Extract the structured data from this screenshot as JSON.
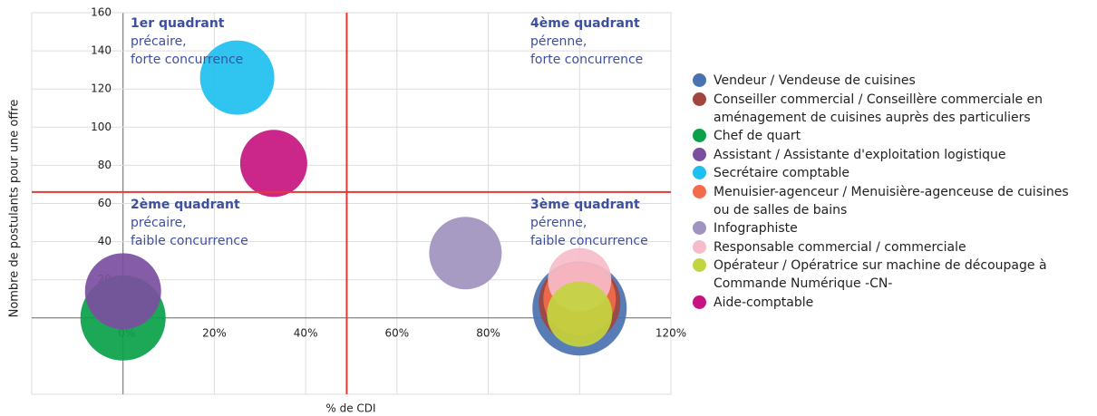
{
  "chart_data": {
    "type": "bubble",
    "xlabel": "% de CDI",
    "ylabel": "Nombre de postulants pour une offre",
    "xlim": [
      -20,
      120
    ],
    "xticks": [
      {
        "value": 0,
        "label": "0%"
      },
      {
        "value": 20,
        "label": "20%"
      },
      {
        "value": 40,
        "label": "40%"
      },
      {
        "value": 60,
        "label": "60%"
      },
      {
        "value": 80,
        "label": "80%"
      },
      {
        "value": 100,
        "label": "100%"
      },
      {
        "value": 120,
        "label": "120%"
      }
    ],
    "ylim": [
      -40,
      160
    ],
    "yticks": [
      0,
      20,
      40,
      60,
      80,
      100,
      120,
      140,
      160
    ],
    "grid": true,
    "quadrant_lines": {
      "x": 49,
      "y": 66
    },
    "annotations": [
      {
        "title": "1er quadrant",
        "lines": [
          "précaire,",
          "forte concurrence"
        ]
      },
      {
        "title": "4ème quadrant",
        "lines": [
          "pérenne,",
          "forte concurrence"
        ]
      },
      {
        "title": "2ème quadrant",
        "lines": [
          "précaire,",
          "faible concurrence"
        ]
      },
      {
        "title": "3ème quadrant",
        "lines": [
          "pérenne,",
          "faible concurrence"
        ]
      }
    ],
    "series": [
      {
        "name": "Vendeur / Vendeuse de cuisines",
        "color": "#4a72b0",
        "x": 100,
        "y": 5,
        "size": 52
      },
      {
        "name": "Conseiller commercial / Conseillère commerciale en aménagement de cuisines auprès des particuliers",
        "color": "#a0463f",
        "x": 100,
        "y": 8,
        "size": 45
      },
      {
        "name": "Chef de quart",
        "color": "#0aa14a",
        "x": 0,
        "y": 0,
        "size": 47
      },
      {
        "name": "Assistant / Assistante d'exploitation logistique",
        "color": "#7b4ea0",
        "x": 0,
        "y": 14,
        "size": 42
      },
      {
        "name": "Secrétaire comptable",
        "color": "#1ec0ef",
        "x": 25,
        "y": 126,
        "size": 41
      },
      {
        "name": "Menuisier-agenceur / Menuisière-agenceuse de cuisines ou de salles de bains",
        "color": "#f26b4a",
        "x": 100,
        "y": 10,
        "size": 40
      },
      {
        "name": "Infographiste",
        "color": "#a093bf",
        "x": 75,
        "y": 34,
        "size": 40
      },
      {
        "name": "Responsable commercial / commerciale",
        "color": "#f6bcc9",
        "x": 100,
        "y": 20,
        "size": 35
      },
      {
        "name": "Opérateur / Opératrice sur machine de découpage à Commande Numérique -CN-",
        "color": "#c2d540",
        "x": 100,
        "y": 2,
        "size": 36
      },
      {
        "name": "Aide-comptable",
        "color": "#c7137f",
        "x": 33,
        "y": 81,
        "size": 37
      }
    ]
  }
}
